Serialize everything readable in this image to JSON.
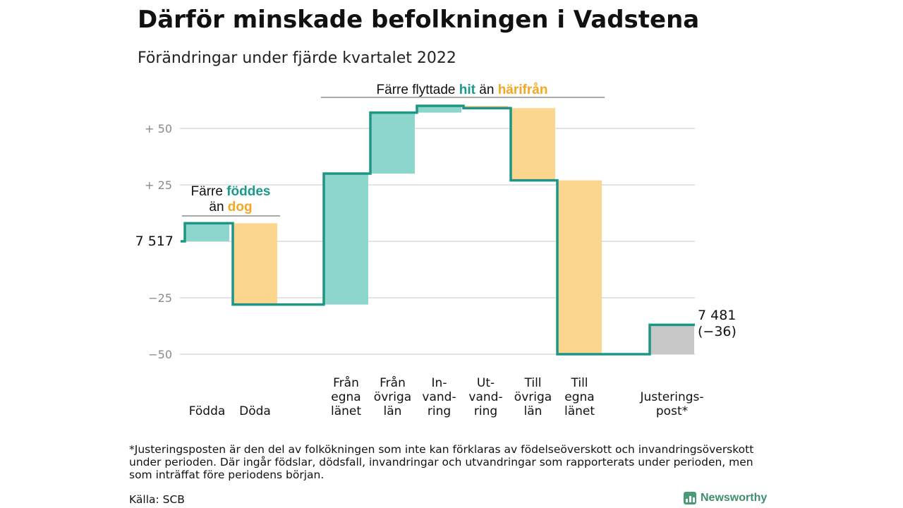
{
  "title": "Därför minskade befolkningen i Vadstena",
  "subtitle": "Förändringar under fjärde kvartalet 2022",
  "colors": {
    "positive": "#8dd6cc",
    "negative": "#fbd68e",
    "adjustment": "#c8c8c8",
    "line": "#1e9585",
    "teal_text": "#1a9a8a",
    "orange_text": "#f5a623",
    "grid": "#dcdcdc",
    "tick_text": "#8a8a8a"
  },
  "annotations": {
    "births": {
      "prefix": "Färre ",
      "hl1": "föddes",
      "line2_prefix": "än ",
      "hl2": "dog"
    },
    "migration": {
      "prefix": "Färre flyttade ",
      "hl1": "hit",
      "mid": " än ",
      "hl2": "härifrån"
    }
  },
  "start_label": "7 517",
  "end_label": {
    "line1": "7 481",
    "line2": "(−36)"
  },
  "chart_data": {
    "type": "waterfall",
    "baseline_population": 7517,
    "start": 0,
    "end": -36,
    "ylim": [
      -55,
      60
    ],
    "yticks": [
      {
        "value": 50,
        "label": "+ 50"
      },
      {
        "value": 25,
        "label": "+ 25"
      },
      {
        "value": -25,
        "label": "−25"
      },
      {
        "value": -50,
        "label": "−50"
      }
    ],
    "grid": true,
    "categories": [
      {
        "label": [
          "Födda"
        ],
        "change": 8,
        "kind": "positive"
      },
      {
        "label": [
          "Döda"
        ],
        "change": -36,
        "kind": "negative"
      },
      {
        "label": [
          "Från",
          "egna",
          "länet"
        ],
        "change": 58,
        "kind": "positive"
      },
      {
        "label": [
          "Från",
          "övriga",
          "län"
        ],
        "change": 27,
        "kind": "positive"
      },
      {
        "label": [
          "In-",
          "vand-",
          "ring"
        ],
        "change": 3,
        "kind": "positive"
      },
      {
        "label": [
          "Ut-",
          "vand-",
          "ring"
        ],
        "change": -1,
        "kind": "negative"
      },
      {
        "label": [
          "Till",
          "övriga",
          "län"
        ],
        "change": -32,
        "kind": "negative"
      },
      {
        "label": [
          "Till",
          "egna",
          "länet"
        ],
        "change": -77,
        "kind": "negative"
      },
      {
        "label": [
          "Justerings-",
          "post*"
        ],
        "change": 13,
        "kind": "adjustment"
      }
    ]
  },
  "footnote": "*Justeringsposten är den del av folkökningen som inte kan förklaras av födelseöverskott och invandringsöverskott under perioden. Där ingår födslar, dödsfall, invandringar och utvandringar som rapporterats under perioden, men som inträffat före periodens början.",
  "source": "Källa: SCB",
  "brand": "Newsworthy"
}
